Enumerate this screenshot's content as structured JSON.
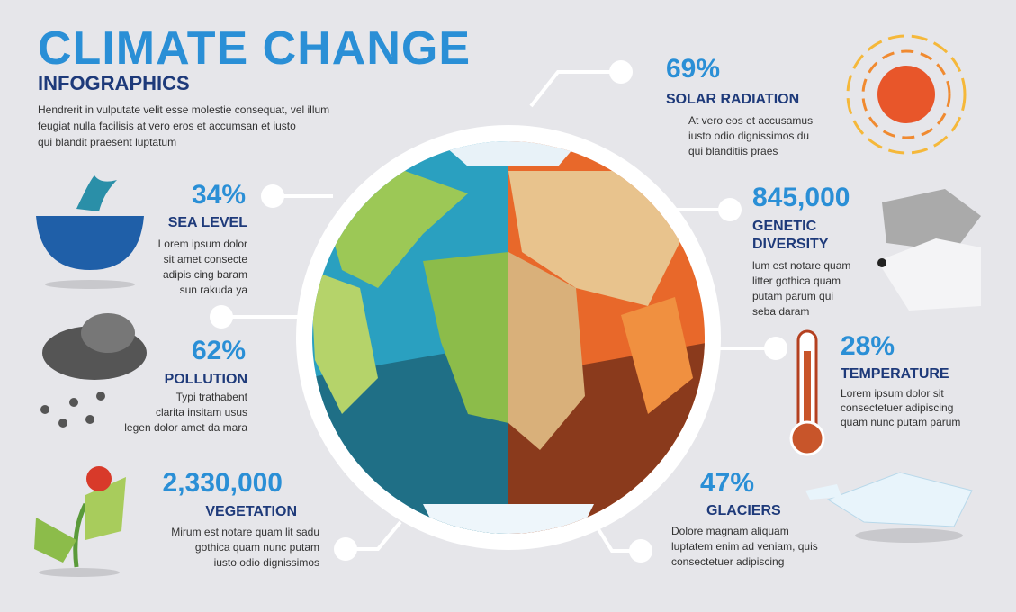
{
  "header": {
    "title": "CLIMATE CHANGE",
    "subtitle": "INFOGRAPHICS",
    "description": [
      "Hendrerit in vulputate velit esse molestie consequat, vel illum",
      "feugiat nulla facilisis at vero eros et accumsan et iusto",
      "qui blandit praesent luptatum"
    ]
  },
  "items": [
    {
      "stat": "34%",
      "label": [
        "SEA LEVEL"
      ],
      "text": [
        "Lorem ipsum dolor",
        "sit amet consecte",
        "adipis cing baram",
        "sun rakuda ya"
      ]
    },
    {
      "stat": "62%",
      "label": [
        "POLLUTION"
      ],
      "text": [
        "Typi trathabent",
        "clarita insitam usus",
        "legen dolor amet da mara"
      ]
    },
    {
      "stat": "2,330,000",
      "label": [
        "VEGETATION"
      ],
      "text": [
        "Mirum est notare quam lit sadu",
        "gothica quam nunc putam",
        "iusto odio dignissimos"
      ]
    },
    {
      "stat": "69%",
      "label": [
        "SOLAR RADIATION"
      ],
      "text": [
        "At vero eos et accusamus",
        "iusto odio dignissimos du",
        "qui blanditiis praes"
      ]
    },
    {
      "stat": "845,000",
      "label": [
        "GENETIC",
        "DIVERSITY"
      ],
      "text": [
        "lum est notare quam",
        "litter gothica quam",
        "putam parum qui",
        "seba  daram"
      ]
    },
    {
      "stat": "28%",
      "label": [
        "TEMPERATURE"
      ],
      "text": [
        "Lorem ipsum dolor sit",
        "consectetuer adipiscing",
        "quam nunc putam parum"
      ]
    },
    {
      "stat": "47%",
      "label": [
        "GLACIERS"
      ],
      "text": [
        "Dolore magnam aliquam",
        "luptatem enim ad veniam, quis",
        "consectetuer adipiscing"
      ]
    }
  ]
}
